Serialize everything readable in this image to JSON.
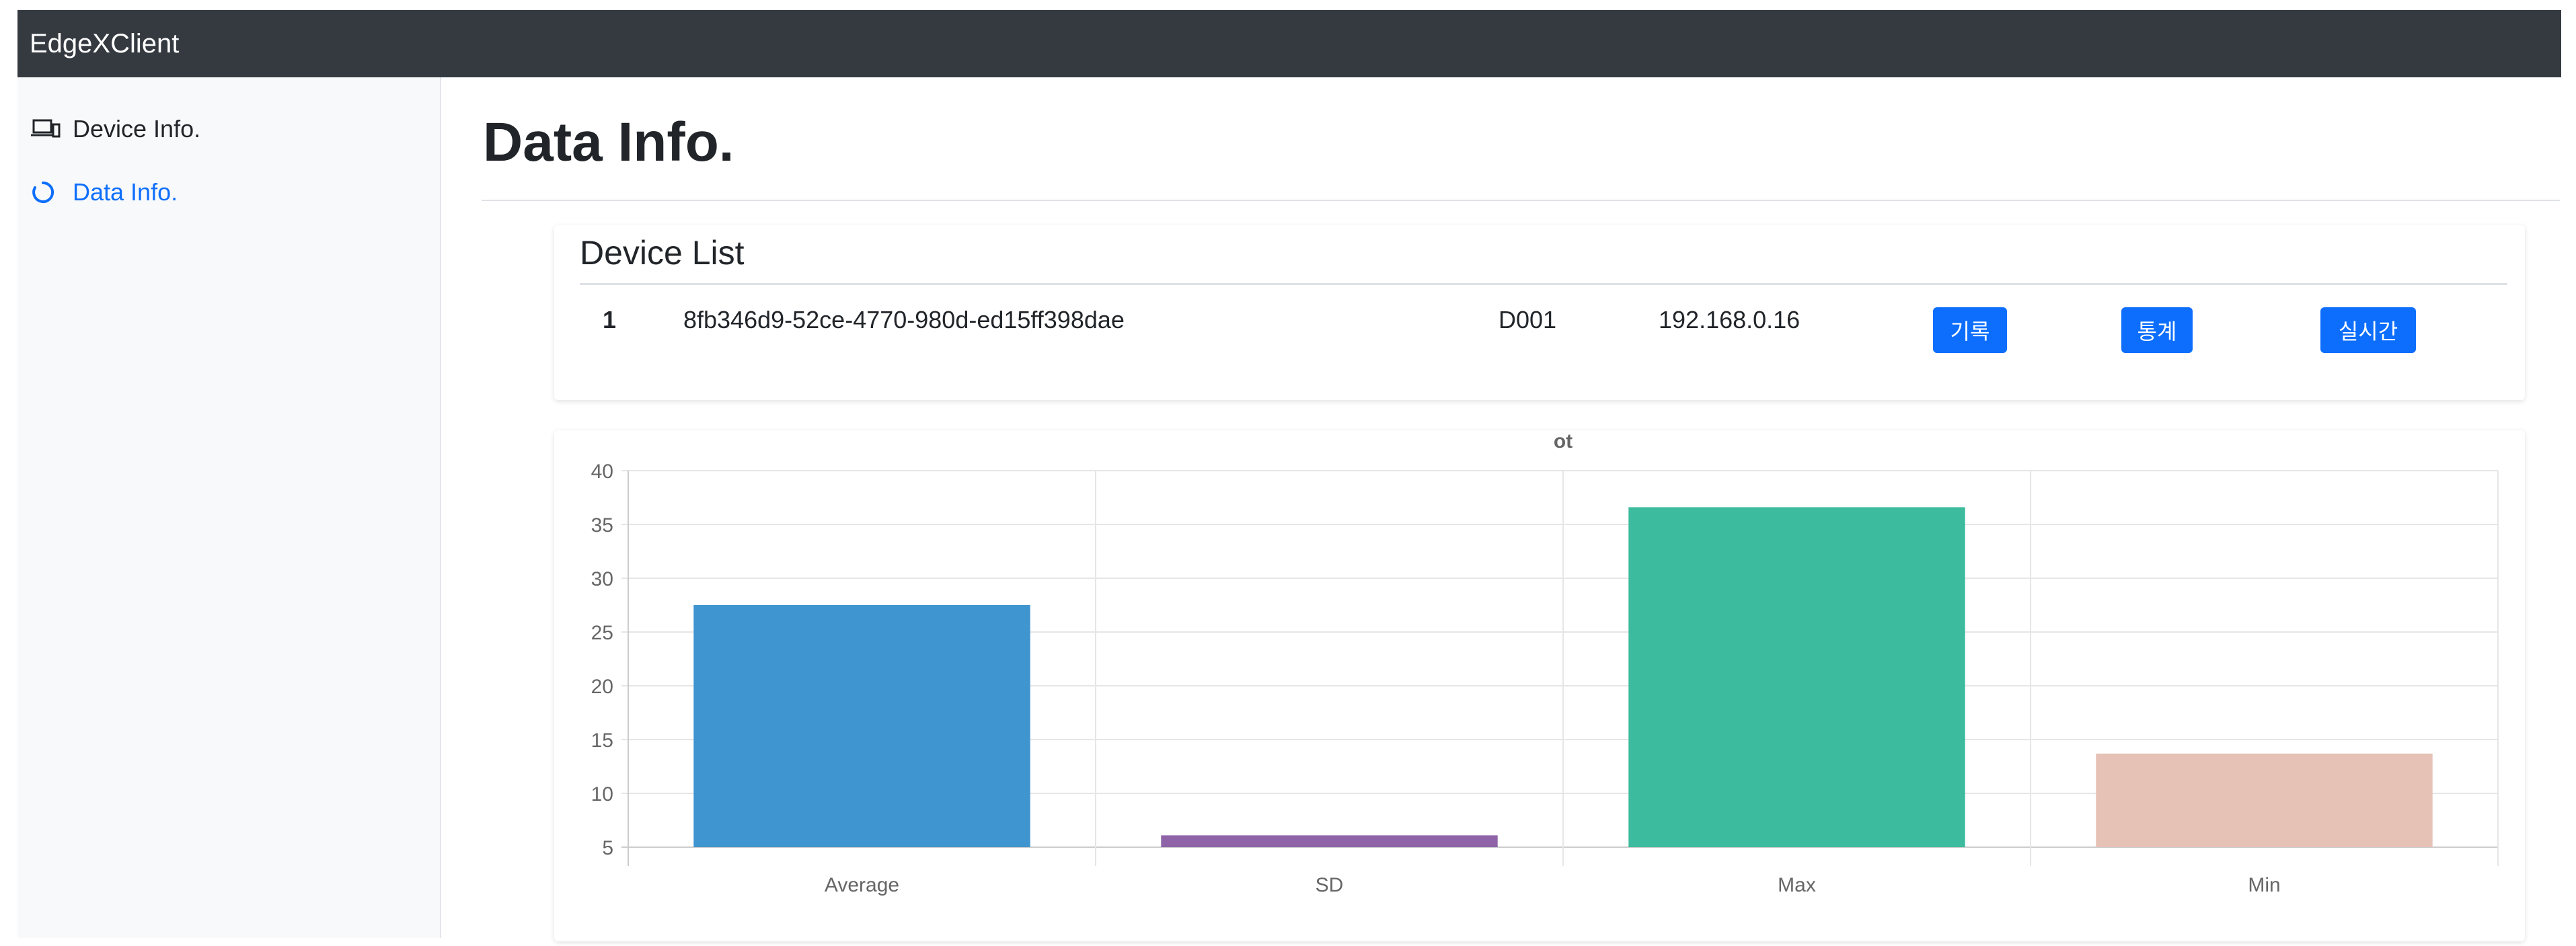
{
  "app": {
    "brand": "EdgeXClient"
  },
  "sidebar": {
    "items": [
      {
        "label": "Device Info.",
        "icon": "devices-icon",
        "active": false
      },
      {
        "label": "Data Info.",
        "icon": "loading-circle-icon",
        "active": true
      }
    ]
  },
  "main": {
    "title": "Data Info.",
    "device_list": {
      "heading": "Device List",
      "rows": [
        {
          "index": "1",
          "id": "8fb346d9-52ce-4770-980d-ed15ff398dae",
          "name": "D001",
          "ip": "192.168.0.16",
          "buttons": [
            "기록",
            "통계",
            "실시간"
          ]
        }
      ]
    }
  },
  "colors": {
    "navbar": "#343a40",
    "accent": "#0d6efd",
    "sidebar_bg": "#f8f9fa"
  },
  "chart_data": {
    "type": "bar",
    "title": "ot",
    "categories": [
      "Average",
      "SD",
      "Max",
      "Min"
    ],
    "values": [
      27.5,
      6.1,
      36.6,
      13.7
    ],
    "bar_colors": [
      "#3f95cf",
      "#8f63a8",
      "#3dbb9e",
      "#e6c1b6"
    ],
    "ylim": [
      5,
      40
    ],
    "yticks": [
      5,
      10,
      15,
      20,
      25,
      30,
      35,
      40
    ],
    "xlabel": "",
    "ylabel": "",
    "grid": true,
    "legend": "none"
  }
}
